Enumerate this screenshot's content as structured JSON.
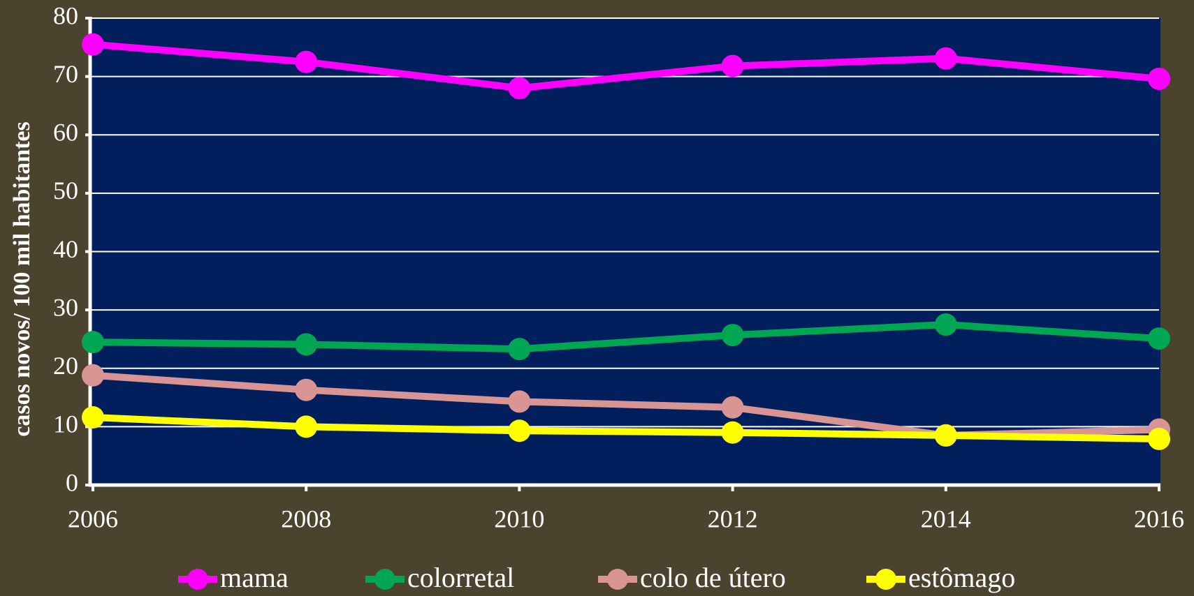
{
  "chart_data": {
    "type": "line",
    "y_label": "casos novos/ 100 mil habitantes",
    "x": [
      2006,
      2008,
      2010,
      2012,
      2014,
      2016
    ],
    "xlim": [
      2006,
      2016
    ],
    "xticks": [
      2006,
      2008,
      2010,
      2012,
      2014,
      2016
    ],
    "ylim": [
      0,
      80
    ],
    "yticks": [
      0,
      10,
      20,
      30,
      40,
      50,
      60,
      70,
      80
    ],
    "grid": true,
    "legend": "bottom",
    "series": [
      {
        "name": "mama",
        "color": "#ff00ff",
        "values": [
          75.5,
          72.5,
          68,
          71.8,
          73.1,
          69.6
        ]
      },
      {
        "name": "colorretal",
        "color": "#00a651",
        "values": [
          24.5,
          24.1,
          23.3,
          25.7,
          27.5,
          25.1
        ]
      },
      {
        "name": "colo de útero",
        "color": "#d99594",
        "values": [
          18.8,
          16.3,
          14.3,
          13.3,
          8.5,
          9.5
        ]
      },
      {
        "name": "estômago",
        "color": "#ffff00",
        "values": [
          11.6,
          10.0,
          9.3,
          9.0,
          8.5,
          7.9
        ]
      }
    ]
  }
}
